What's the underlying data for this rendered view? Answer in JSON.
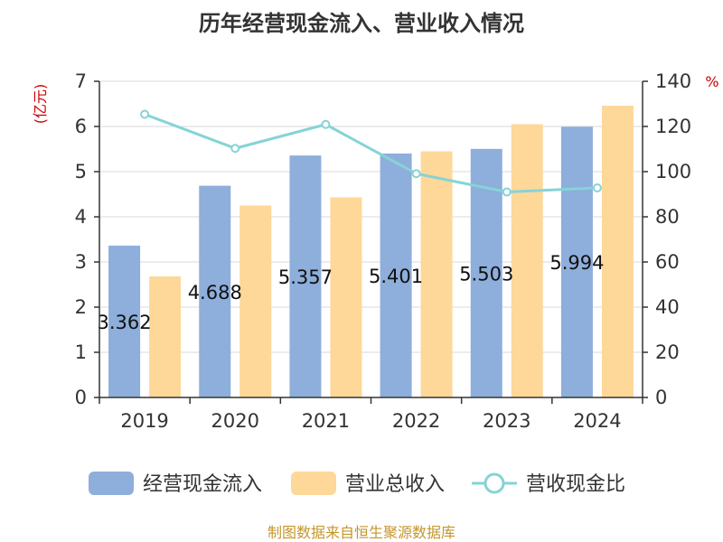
{
  "title": "历年经营现金流入、营业收入情况",
  "units": {
    "left": "(亿元)",
    "right": "%"
  },
  "colors": {
    "cash_inflow": "#8eaedb",
    "revenue": "#fed899",
    "ratio": "#86d3d6",
    "axis": "#333333",
    "grid": "#d9d9d9"
  },
  "chart_data": {
    "type": "bar",
    "categories": [
      "2019",
      "2020",
      "2021",
      "2022",
      "2023",
      "2024"
    ],
    "series": [
      {
        "name": "经营现金流入",
        "type": "bar",
        "axis": "left",
        "values": [
          3.362,
          4.688,
          5.357,
          5.401,
          5.503,
          5.994
        ],
        "labels": [
          "3.362",
          "4.688",
          "5.357",
          "5.401",
          "5.503",
          "5.994"
        ]
      },
      {
        "name": "营业总收入",
        "type": "bar",
        "axis": "left",
        "values": [
          2.68,
          4.25,
          4.43,
          5.45,
          6.05,
          6.46
        ]
      },
      {
        "name": "营收现金比",
        "type": "line",
        "axis": "right",
        "values": [
          125.4,
          110.3,
          120.9,
          99.1,
          91.0,
          92.8
        ]
      }
    ],
    "y_left": {
      "min": 0,
      "max": 7,
      "ticks": [
        "0",
        "1",
        "2",
        "3",
        "4",
        "5",
        "6",
        "7"
      ]
    },
    "y_right": {
      "min": 0,
      "max": 140,
      "ticks": [
        "0",
        "20",
        "40",
        "60",
        "80",
        "100",
        "120",
        "140"
      ]
    },
    "grid": true,
    "legend": "bottom"
  },
  "legend": [
    {
      "label": "经营现金流入",
      "kind": "bar-cash"
    },
    {
      "label": "营业总收入",
      "kind": "bar-revenue"
    },
    {
      "label": "营收现金比",
      "kind": "line-ratio"
    }
  ],
  "source": "制图数据来自恒生聚源数据库"
}
